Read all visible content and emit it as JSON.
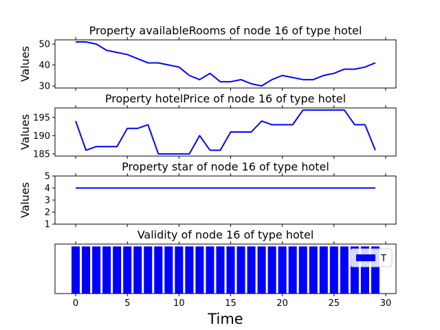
{
  "chart_data": [
    {
      "type": "line",
      "title": "Property availableRooms of node 16 of type hotel",
      "ylabel": "Values",
      "xlim": [
        -2,
        31
      ],
      "ylim": [
        29,
        52
      ],
      "yticks": [
        30,
        40,
        50
      ],
      "xticks": [
        0,
        5,
        10,
        15,
        20,
        25,
        30
      ],
      "show_xtick_labels": false,
      "color": "#0000ff",
      "x": [
        0,
        1,
        2,
        3,
        4,
        5,
        6,
        7,
        8,
        9,
        10,
        11,
        12,
        13,
        14,
        15,
        16,
        17,
        18,
        19,
        20,
        21,
        22,
        23,
        24,
        25,
        26,
        27,
        28,
        29
      ],
      "values": [
        51,
        51,
        50,
        47,
        46,
        45,
        43,
        41,
        41,
        40,
        39,
        35,
        33,
        36,
        32,
        32,
        33,
        31,
        30,
        33,
        35,
        34,
        33,
        33,
        35,
        36,
        38,
        38,
        39,
        41
      ]
    },
    {
      "type": "line",
      "title": "Property hotelPrice of node 16 of type hotel",
      "ylabel": "Values",
      "xlim": [
        -2,
        31
      ],
      "ylim": [
        184.4,
        197.6
      ],
      "yticks": [
        185,
        190,
        195
      ],
      "xticks": [
        0,
        5,
        10,
        15,
        20,
        25,
        30
      ],
      "show_xtick_labels": false,
      "color": "#0000ff",
      "x": [
        0,
        1,
        2,
        3,
        4,
        5,
        6,
        7,
        8,
        9,
        10,
        11,
        12,
        13,
        14,
        15,
        16,
        17,
        18,
        19,
        20,
        21,
        22,
        23,
        24,
        25,
        26,
        27,
        28,
        29
      ],
      "values": [
        194,
        186,
        187,
        187,
        187,
        192,
        192,
        193,
        185,
        185,
        185,
        185,
        190,
        186,
        186,
        191,
        191,
        191,
        194,
        193,
        193,
        193,
        197,
        197,
        197,
        197,
        197,
        193,
        193,
        186
      ]
    },
    {
      "type": "line",
      "title": "Property star of node 16 of type hotel",
      "ylabel": "Values",
      "xlim": [
        -2,
        31
      ],
      "ylim": [
        1,
        5
      ],
      "yticks": [
        1,
        2,
        3,
        4,
        5
      ],
      "xticks": [
        0,
        5,
        10,
        15,
        20,
        25,
        30
      ],
      "show_xtick_labels": false,
      "color": "#0000ff",
      "x": [
        0,
        1,
        2,
        3,
        4,
        5,
        6,
        7,
        8,
        9,
        10,
        11,
        12,
        13,
        14,
        15,
        16,
        17,
        18,
        19,
        20,
        21,
        22,
        23,
        24,
        25,
        26,
        27,
        28,
        29
      ],
      "values": [
        4,
        4,
        4,
        4,
        4,
        4,
        4,
        4,
        4,
        4,
        4,
        4,
        4,
        4,
        4,
        4,
        4,
        4,
        4,
        4,
        4,
        4,
        4,
        4,
        4,
        4,
        4,
        4,
        4,
        4
      ]
    },
    {
      "type": "bar",
      "title": "Validity of node 16 of type hotel",
      "xlabel": "Time",
      "xlim": [
        -2,
        31
      ],
      "ylim": [
        0,
        1.05
      ],
      "xticks": [
        0,
        5,
        10,
        15,
        20,
        25,
        30
      ],
      "show_xtick_labels": true,
      "color": "#0000ff",
      "legend": {
        "entries": [
          "T"
        ],
        "placement": "upper right"
      },
      "x": [
        0,
        1,
        2,
        3,
        4,
        5,
        6,
        7,
        8,
        9,
        10,
        11,
        12,
        13,
        14,
        15,
        16,
        17,
        18,
        19,
        20,
        21,
        22,
        23,
        24,
        25,
        26,
        27,
        28,
        29
      ],
      "values": [
        1,
        1,
        1,
        1,
        1,
        1,
        1,
        1,
        1,
        1,
        1,
        1,
        1,
        1,
        1,
        1,
        1,
        1,
        1,
        1,
        1,
        1,
        1,
        1,
        1,
        1,
        1,
        1,
        1,
        1
      ]
    }
  ]
}
